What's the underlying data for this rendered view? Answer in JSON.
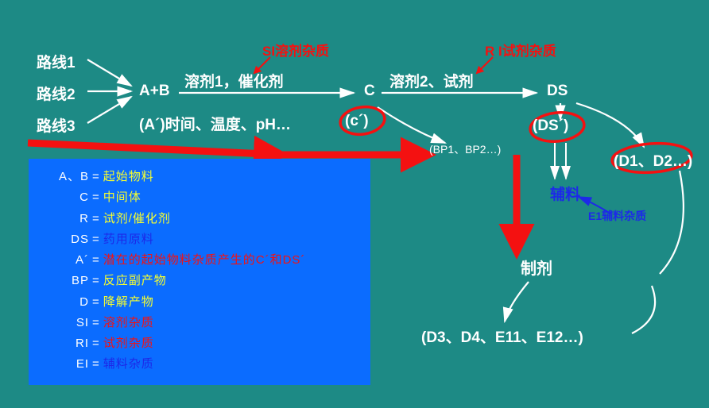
{
  "bg": "#1d8a85",
  "colors": {
    "white": "#ffffff",
    "red": "#f41111",
    "blue": "#1d29e8",
    "yellow": "#f7ff2e",
    "legend_bg": "#0b6cff"
  },
  "flow": {
    "route1": "路线1",
    "route2": "路线2",
    "route3": "路线3",
    "ab": "A+B",
    "solvent1": "溶剂1，催化剂",
    "aprime_cond": "(A´)时间、温度、pH…",
    "si_label": "SI溶剂杂质",
    "c": "C",
    "cprime": "(c´)",
    "bp": "(BP1、BP2…)",
    "solvent2": "溶剂2、试剂",
    "ri_label": "R I试剂杂质",
    "ds": "DS",
    "dsprime": "(DS´)",
    "excipient": "辅料",
    "e1_label": "E1辅料杂质",
    "d12": "(D1、D2…)",
    "formulation": "制剂",
    "d_bottom": "(D3、D4、E11、E12…)"
  },
  "legend": {
    "rows": [
      {
        "k": "A、B",
        "eq": "=",
        "v": "起始物料",
        "c": "yellow"
      },
      {
        "k": "C",
        "eq": "=",
        "v": "中间体",
        "c": "yellow"
      },
      {
        "k": "R",
        "eq": "=",
        "v": "试剂/催化剂",
        "c": "yellow"
      },
      {
        "k": "DS",
        "eq": "=",
        "v": "药用原料",
        "c": "blue"
      },
      {
        "k": "A´",
        "eq": "=",
        "v": "潜在的起始物料杂质产生的C´和DS´",
        "c": "red"
      },
      {
        "k": "BP",
        "eq": "=",
        "v": "反应副产物",
        "c": "yellow"
      },
      {
        "k": "D",
        "eq": "=",
        "v": "降解产物",
        "c": "yellow"
      },
      {
        "k": "SI",
        "eq": "=",
        "v": "溶剂杂质",
        "c": "red"
      },
      {
        "k": "RI",
        "eq": "=",
        "v": "试剂杂质",
        "c": "red"
      },
      {
        "k": "EI",
        "eq": "=",
        "v": "辅料杂质",
        "c": "blue"
      }
    ]
  },
  "style": {
    "flow_fontsize": 19,
    "flow_fontweight": 600,
    "small_fontsize": 15,
    "legend_fontsize": 15,
    "arrow_white_width": 2.2,
    "arrow_red_width": 9,
    "ellipse_stroke": 3.5
  }
}
